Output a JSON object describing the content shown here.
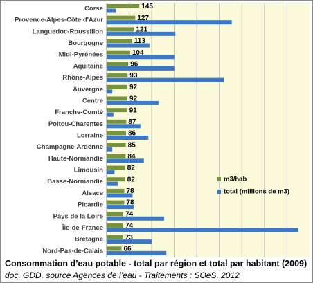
{
  "chart_data": {
    "type": "bar",
    "orientation": "horizontal",
    "categories": [
      "Corse",
      "Provence-Alpes-Côte d'Azur",
      "Languedoc-Roussillon",
      "Bourgogne",
      "Midi-Pyrénées",
      "Aquitaine",
      "Rhône-Alpes",
      "Auvergne",
      "Centre",
      "Franche-Comté",
      "Poitou-Charentes",
      "Lorraine",
      "Champagne-Ardenne",
      "Haute-Normandie",
      "Limousin",
      "Basse-Normandie",
      "Alsace",
      "Picardie",
      "Pays de la Loire",
      "Île-de-France",
      "Bretagne",
      "Nord-Pas-de-Calais"
    ],
    "series": [
      {
        "name": "m3/hab",
        "color": "#77933c",
        "values": [
          145,
          127,
          121,
          113,
          104,
          96,
          93,
          92,
          92,
          91,
          87,
          86,
          85,
          84,
          82,
          82,
          78,
          78,
          74,
          74,
          73,
          66
        ],
        "data_labels": true
      },
      {
        "name": "total (millions de m3)",
        "color": "#3c78c8",
        "values": [
          40,
          555,
          305,
          190,
          300,
          300,
          520,
          25,
          230,
          30,
          150,
          185,
          25,
          165,
          35,
          50,
          115,
          120,
          255,
          850,
          200,
          265
        ],
        "data_labels": false
      }
    ],
    "xlim": [
      0,
      900
    ],
    "x_tick_labels": [],
    "grid": "vertical",
    "plot_background": "#fbfbdc",
    "legend_position": "bottom-right"
  },
  "caption": {
    "title": "Consommation d’eau potable - total par région et total par habitant (2009)",
    "source": "doc. GDD, source Agences de l’eau - Traitements : SOeS, 2012"
  }
}
